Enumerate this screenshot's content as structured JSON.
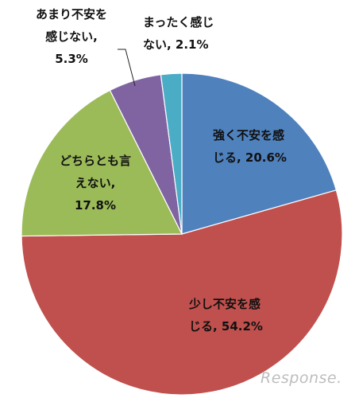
{
  "chart_data": {
    "type": "pie",
    "start_angle_deg": 0,
    "direction": "clockwise",
    "slices": [
      {
        "label_lines": [
          "強く不安を感",
          "じる, 20.6%"
        ],
        "value": 20.6,
        "color": "#4F81BD"
      },
      {
        "label_lines": [
          "少し不安を感",
          "じる, 54.2%"
        ],
        "value": 54.2,
        "color": "#C0504D"
      },
      {
        "label_lines": [
          "どちらとも言",
          "えない,",
          "17.8%"
        ],
        "value": 17.8,
        "color": "#9BBB59"
      },
      {
        "label_lines": [
          "あまり不安を",
          "感じない,",
          "5.3%"
        ],
        "value": 5.3,
        "color": "#8064A2"
      },
      {
        "label_lines": [
          "まったく感じ",
          "ない, 2.1%"
        ],
        "value": 2.1,
        "color": "#4BACC6"
      }
    ],
    "legend": "none"
  },
  "watermark": "Response."
}
